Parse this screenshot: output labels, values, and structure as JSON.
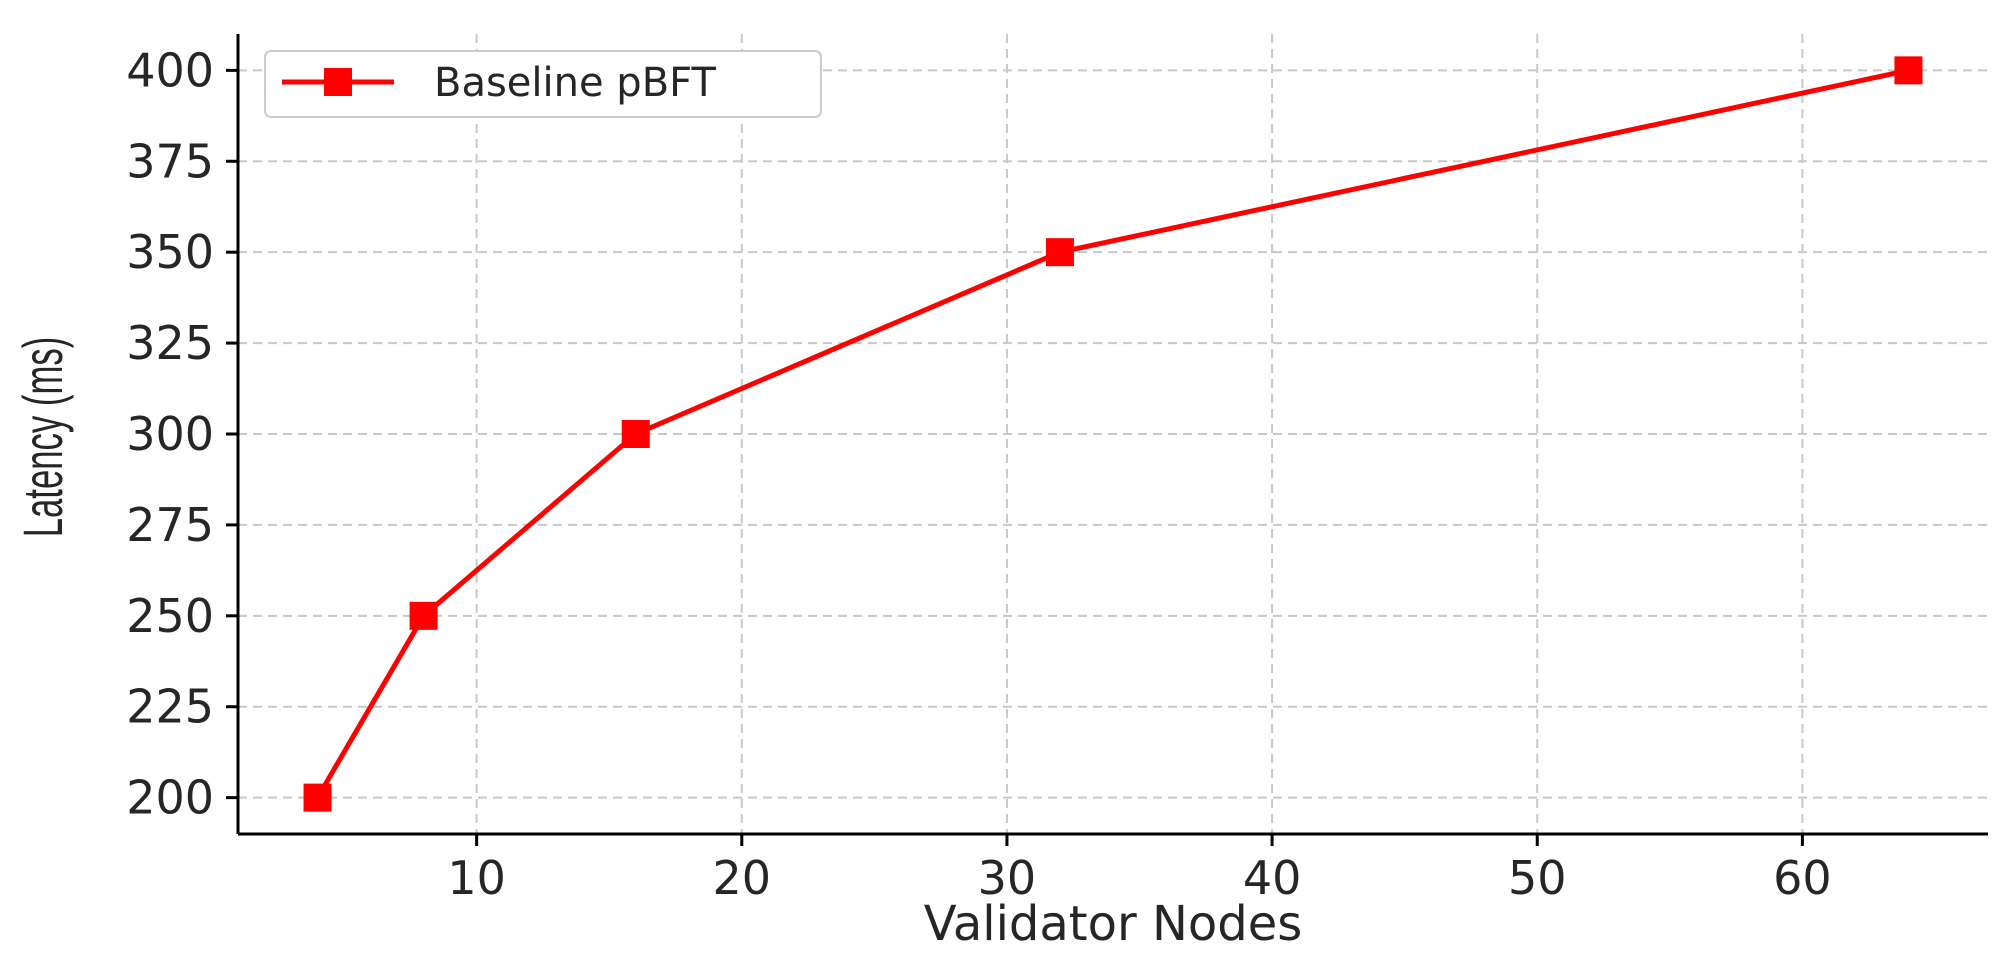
{
  "chart_data": {
    "type": "line",
    "title": "",
    "xlabel": "Validator Nodes",
    "ylabel": "Latency (ms)",
    "xlim": [
      1,
      67
    ],
    "ylim": [
      190,
      410
    ],
    "xticks": [
      10,
      20,
      30,
      40,
      50,
      60
    ],
    "yticks": [
      200,
      225,
      250,
      275,
      300,
      325,
      350,
      375,
      400
    ],
    "grid": true,
    "legend_position": "top-left",
    "series": [
      {
        "name": "Baseline pBFT",
        "color": "#ff0000",
        "marker": "square",
        "x": [
          4,
          8,
          16,
          32,
          64
        ],
        "y": [
          200,
          250,
          300,
          350,
          400
        ]
      }
    ]
  }
}
